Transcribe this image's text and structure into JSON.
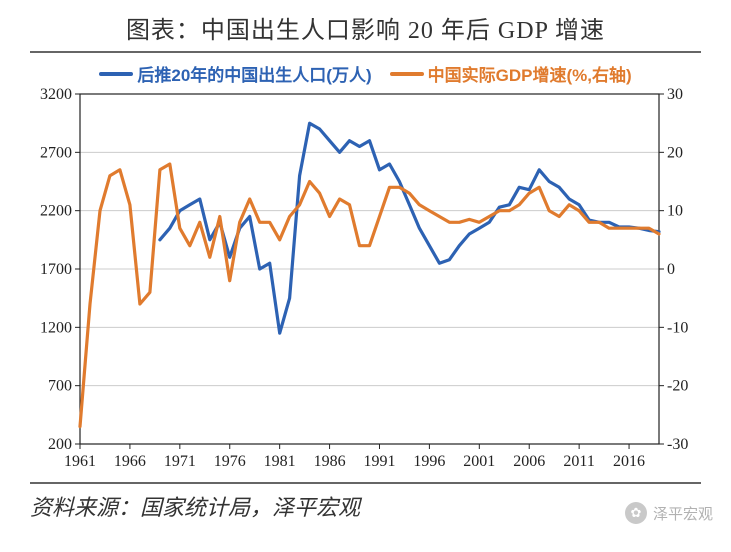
{
  "title": "图表：中国出生人口影响 20 年后 GDP 增速",
  "source": "资料来源：国家统计局，泽平宏观",
  "watermark": "泽平宏观",
  "chart": {
    "type": "dual-axis-line",
    "background_color": "#ffffff",
    "grid_color": "#cccccc",
    "axis_color": "#222222",
    "title_fontsize": 24,
    "label_fontsize": 16,
    "line_width": 3.2,
    "x_axis": {
      "min": 1961,
      "max": 2019,
      "ticks": [
        1961,
        1966,
        1971,
        1976,
        1981,
        1986,
        1991,
        1996,
        2001,
        2006,
        2011,
        2016
      ]
    },
    "y_left": {
      "min": 200,
      "max": 3200,
      "ticks": [
        200,
        700,
        1200,
        1700,
        2200,
        2700,
        3200
      ]
    },
    "y_right": {
      "min": -30,
      "max": 30,
      "ticks": [
        -30,
        -20,
        -10,
        0,
        10,
        20,
        30
      ]
    },
    "legend": {
      "series1": "后推20年的中国出生人口(万人)",
      "series2": "中国实际GDP增速(%,右轴)"
    },
    "series": [
      {
        "name": "population_shift20",
        "axis": "left",
        "color": "#2d62b3",
        "points": [
          [
            1969,
            1950
          ],
          [
            1970,
            2050
          ],
          [
            1971,
            2200
          ],
          [
            1972,
            2250
          ],
          [
            1973,
            2300
          ],
          [
            1974,
            1950
          ],
          [
            1975,
            2100
          ],
          [
            1976,
            1800
          ],
          [
            1977,
            2050
          ],
          [
            1978,
            2150
          ],
          [
            1979,
            1700
          ],
          [
            1980,
            1750
          ],
          [
            1981,
            1150
          ],
          [
            1982,
            1450
          ],
          [
            1983,
            2500
          ],
          [
            1984,
            2950
          ],
          [
            1985,
            2900
          ],
          [
            1986,
            2800
          ],
          [
            1987,
            2700
          ],
          [
            1988,
            2800
          ],
          [
            1989,
            2750
          ],
          [
            1990,
            2800
          ],
          [
            1991,
            2550
          ],
          [
            1992,
            2600
          ],
          [
            1993,
            2450
          ],
          [
            1994,
            2250
          ],
          [
            1995,
            2050
          ],
          [
            1996,
            1900
          ],
          [
            1997,
            1750
          ],
          [
            1998,
            1780
          ],
          [
            1999,
            1900
          ],
          [
            2000,
            2000
          ],
          [
            2001,
            2050
          ],
          [
            2002,
            2100
          ],
          [
            2003,
            2230
          ],
          [
            2004,
            2250
          ],
          [
            2005,
            2400
          ],
          [
            2006,
            2380
          ],
          [
            2007,
            2550
          ],
          [
            2008,
            2450
          ],
          [
            2009,
            2400
          ],
          [
            2010,
            2300
          ],
          [
            2011,
            2250
          ],
          [
            2012,
            2120
          ],
          [
            2013,
            2100
          ],
          [
            2014,
            2100
          ],
          [
            2015,
            2060
          ],
          [
            2016,
            2060
          ],
          [
            2017,
            2050
          ],
          [
            2018,
            2030
          ],
          [
            2019,
            2020
          ]
        ]
      },
      {
        "name": "gdp_growth",
        "axis": "right",
        "color": "#e07b2e",
        "points": [
          [
            1961,
            -27
          ],
          [
            1962,
            -6
          ],
          [
            1963,
            10
          ],
          [
            1964,
            16
          ],
          [
            1965,
            17
          ],
          [
            1966,
            11
          ],
          [
            1967,
            -6
          ],
          [
            1968,
            -4
          ],
          [
            1969,
            17
          ],
          [
            1970,
            18
          ],
          [
            1971,
            7
          ],
          [
            1972,
            4
          ],
          [
            1973,
            8
          ],
          [
            1974,
            2
          ],
          [
            1975,
            9
          ],
          [
            1976,
            -2
          ],
          [
            1977,
            8
          ],
          [
            1978,
            12
          ],
          [
            1979,
            8
          ],
          [
            1980,
            8
          ],
          [
            1981,
            5
          ],
          [
            1982,
            9
          ],
          [
            1983,
            11
          ],
          [
            1984,
            15
          ],
          [
            1985,
            13
          ],
          [
            1986,
            9
          ],
          [
            1987,
            12
          ],
          [
            1988,
            11
          ],
          [
            1989,
            4
          ],
          [
            1990,
            4
          ],
          [
            1991,
            9
          ],
          [
            1992,
            14
          ],
          [
            1993,
            14
          ],
          [
            1994,
            13
          ],
          [
            1995,
            11
          ],
          [
            1996,
            10
          ],
          [
            1997,
            9
          ],
          [
            1998,
            8
          ],
          [
            1999,
            8
          ],
          [
            2000,
            8.5
          ],
          [
            2001,
            8
          ],
          [
            2002,
            9
          ],
          [
            2003,
            10
          ],
          [
            2004,
            10
          ],
          [
            2005,
            11
          ],
          [
            2006,
            13
          ],
          [
            2007,
            14
          ],
          [
            2008,
            10
          ],
          [
            2009,
            9
          ],
          [
            2010,
            11
          ],
          [
            2011,
            10
          ],
          [
            2012,
            8
          ],
          [
            2013,
            8
          ],
          [
            2014,
            7
          ],
          [
            2015,
            7
          ],
          [
            2016,
            7
          ],
          [
            2017,
            7
          ],
          [
            2018,
            7
          ],
          [
            2019,
            6
          ]
        ]
      }
    ]
  }
}
